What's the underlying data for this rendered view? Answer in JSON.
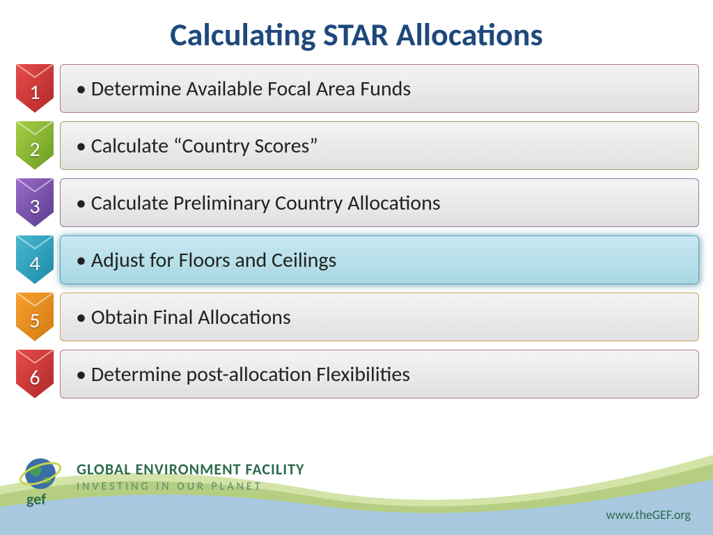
{
  "title": "Calculating STAR Allocations",
  "title_color": "#1f497d",
  "title_fontsize": 46,
  "steps": [
    {
      "num": "1",
      "label": "Determine Available Focal Area Funds",
      "chevron_light": "#e84c4c",
      "chevron_dark": "#b02828",
      "border": "#b07a7a",
      "highlight": false
    },
    {
      "num": "2",
      "label": "Calculate “Country Scores”",
      "chevron_light": "#a8d048",
      "chevron_dark": "#6a9a20",
      "border": "#8aa860",
      "highlight": false
    },
    {
      "num": "3",
      "label": "Calculate Preliminary Country Allocations",
      "chevron_light": "#9a6cc8",
      "chevron_dark": "#5a3a90",
      "border": "#8a78a8",
      "highlight": false
    },
    {
      "num": "4",
      "label": "Adjust for Floors and Ceilings",
      "chevron_light": "#4ab8d0",
      "chevron_dark": "#1a8aa8",
      "border": "#5aa8c0",
      "highlight": true
    },
    {
      "num": "5",
      "label": "Obtain Final Allocations",
      "chevron_light": "#f8a030",
      "chevron_dark": "#d07a10",
      "border": "#d0a060",
      "highlight": false
    },
    {
      "num": "6",
      "label": "Determine post-allocation Flexibilities",
      "chevron_light": "#e84c4c",
      "chevron_dark": "#b02828",
      "border": "#b07a7a",
      "highlight": false
    }
  ],
  "step_fontsize": 30,
  "step_text_color": "#222222",
  "box_bg_top": "#f4f4f4",
  "box_bg_bottom": "#e0e0e0",
  "highlight_bg_top": "#c8e8f0",
  "highlight_bg_bottom": "#a8d8e4",
  "footer": {
    "org_name": "GLOBAL ENVIRONMENT FACILITY",
    "org_tagline": "INVESTING IN OUR PLANET",
    "logo_label": "gef",
    "url": "www.theGEF.org",
    "wave_green_light": "#d4e4a8",
    "wave_green_dark": "#a8c470",
    "wave_blue": "#a8c8e0",
    "text_color": "#2d6b4f"
  }
}
